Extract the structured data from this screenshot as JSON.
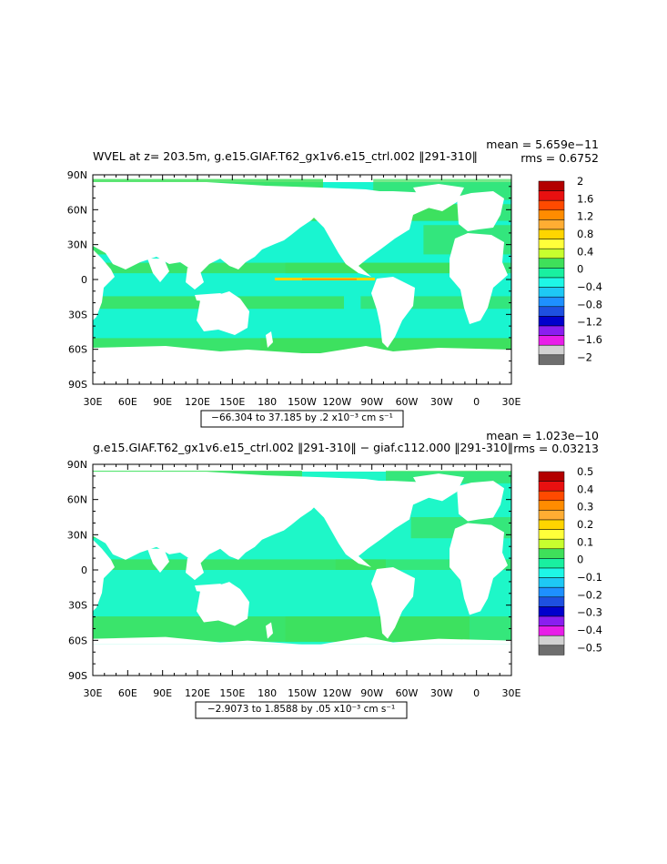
{
  "colors": {
    "land": "#ffffff",
    "axis": "#000000"
  },
  "panels": [
    {
      "title": "WVEL at z= 203.5m, g.e15.GIAF.T62_gx1v6.e15_ctrl.002 ‖291-310‖",
      "mean": "mean = 5.659e−11",
      "rms": "rms = 0.6752",
      "range_text": "−66.304 to 37.185 by .2 x10⁻³ cm s⁻¹",
      "base_color": "#19f5d0",
      "accent_color": "#3fe05a",
      "colorbar": {
        "labels": [
          "2",
          "1.6",
          "1.2",
          "0.8",
          "0.4",
          "0",
          "−0.4",
          "−0.8",
          "−1.2",
          "−1.6",
          "−2"
        ],
        "colors": [
          "#b30000",
          "#e81010",
          "#ff4a00",
          "#ff8c00",
          "#ffad33",
          "#ffd500",
          "#ffff3a",
          "#c8ff2e",
          "#3fe05a",
          "#19f0a0",
          "#1ef7e6",
          "#1ec8f5",
          "#1e90ff",
          "#1e50e0",
          "#0000cc",
          "#8a1ef0",
          "#e81ee8",
          "#d2d2d2",
          "#6e6e6e"
        ]
      }
    },
    {
      "title": "g.e15.GIAF.T62_gx1v6.e15_ctrl.002 ‖291-310‖ − giaf.c112.000 ‖291-310‖",
      "mean": "mean = 1.023e−10",
      "rms": "rms = 0.03213",
      "range_text": "−2.9073 to 1.8588 by .05 x10⁻³ cm s⁻¹",
      "base_color": "#1ef7c8",
      "accent_color": "#3fe05a",
      "colorbar": {
        "labels": [
          "0.5",
          "0.4",
          "0.3",
          "0.2",
          "0.1",
          "0",
          "−0.1",
          "−0.2",
          "−0.3",
          "−0.4",
          "−0.5"
        ],
        "colors": [
          "#b30000",
          "#e81010",
          "#ff4a00",
          "#ff8c00",
          "#ffad33",
          "#ffd500",
          "#ffff3a",
          "#c8ff2e",
          "#3fe05a",
          "#19f0a0",
          "#1ef7e6",
          "#1ec8f5",
          "#1e90ff",
          "#1e50e0",
          "#0000cc",
          "#8a1ef0",
          "#e81ee8",
          "#d2d2d2",
          "#6e6e6e"
        ]
      }
    }
  ],
  "chart_data": [
    {
      "type": "heatmap",
      "title": "WVEL at z= 203.5m, g.e15.GIAF.T62_gx1v6.e15_ctrl.002 ‖291-310‖",
      "x_ticks": [
        "30E",
        "60E",
        "90E",
        "120E",
        "150E",
        "180",
        "150W",
        "120W",
        "90W",
        "60W",
        "30W",
        "0",
        "30E"
      ],
      "y_ticks": [
        "90N",
        "60N",
        "30N",
        "0",
        "30S",
        "60S",
        "90S"
      ],
      "x_range": [
        30,
        390
      ],
      "y_range": [
        -90,
        90
      ],
      "colorbar_levels": [
        2,
        1.6,
        1.2,
        0.8,
        0.4,
        0,
        -0.4,
        -0.8,
        -1.2,
        -1.6,
        -2
      ],
      "mean": 5.659e-11,
      "rms": 0.6752,
      "min": -66.304,
      "max": 37.185,
      "contour_interval": 0.2,
      "units": "x10^-3 cm s^-1"
    },
    {
      "type": "heatmap",
      "title": "g.e15.GIAF.T62_gx1v6.e15_ctrl.002 ‖291-310‖ − giaf.c112.000 ‖291-310‖",
      "x_ticks": [
        "30E",
        "60E",
        "90E",
        "120E",
        "150E",
        "180",
        "150W",
        "120W",
        "90W",
        "60W",
        "30W",
        "0",
        "30E"
      ],
      "y_ticks": [
        "90N",
        "60N",
        "30N",
        "0",
        "30S",
        "60S",
        "90S"
      ],
      "x_range": [
        30,
        390
      ],
      "y_range": [
        -90,
        90
      ],
      "colorbar_levels": [
        0.5,
        0.4,
        0.3,
        0.2,
        0.1,
        0,
        -0.1,
        -0.2,
        -0.3,
        -0.4,
        -0.5
      ],
      "mean": 1.023e-10,
      "rms": 0.03213,
      "min": -2.9073,
      "max": 1.8588,
      "contour_interval": 0.05,
      "units": "x10^-3 cm s^-1"
    }
  ]
}
